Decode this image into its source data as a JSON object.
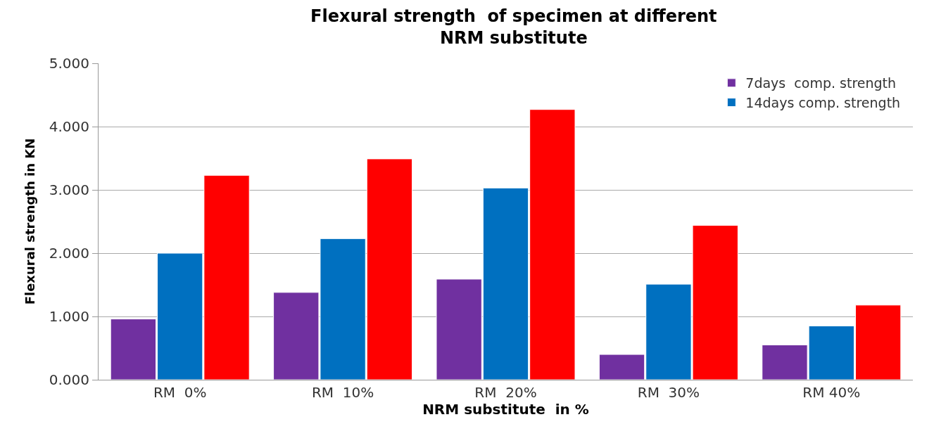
{
  "chart_data": {
    "type": "bar",
    "title": "Flexural strength  of specimen at different NRM substitute",
    "xlabel": "NRM substitute  in %",
    "ylabel": "Flexural strength in KN",
    "categories": [
      "RM  0%",
      "RM  10%",
      "RM  20%",
      "RM  30%",
      "RM 40%"
    ],
    "series": [
      {
        "name": "7days  comp. strength",
        "color": "#7030a0",
        "values": [
          0.96,
          1.38,
          1.59,
          0.4,
          0.55
        ]
      },
      {
        "name": "14days comp. strength",
        "color": "#0070c0",
        "values": [
          2.0,
          2.23,
          3.03,
          1.51,
          0.85
        ]
      },
      {
        "color": "#ff0000",
        "values": [
          3.23,
          3.49,
          4.27,
          2.44,
          1.18
        ]
      }
    ],
    "ylim": [
      0,
      5
    ],
    "yticks": [
      {
        "value": 0,
        "label": "0.000"
      },
      {
        "value": 1,
        "label": "1.000"
      },
      {
        "value": 2,
        "label": "2.000"
      },
      {
        "value": 3,
        "label": "3.000"
      },
      {
        "value": 4,
        "label": "4.000"
      },
      {
        "value": 5,
        "label": "5.000"
      }
    ],
    "grid": "y",
    "legend": "top right"
  }
}
